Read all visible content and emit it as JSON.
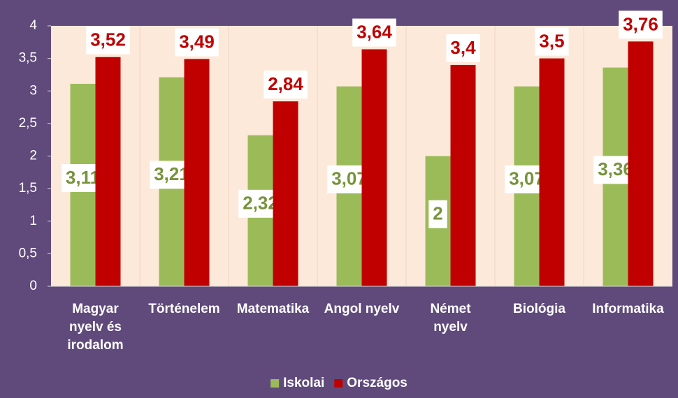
{
  "chart_data": {
    "type": "bar",
    "categories": [
      "Magyar\nnyelv és\nirodalom",
      "Történelem",
      "Matematika",
      "Angol nyelv",
      "Német\nnyelv",
      "Biológia",
      "Informatika"
    ],
    "series": [
      {
        "name": "Iskolai",
        "color": "#9bbb59",
        "label_color": "#77933c",
        "values": [
          3.11,
          3.21,
          2.32,
          3.07,
          2,
          3.07,
          3.36
        ],
        "value_labels": [
          "3,11",
          "3,21",
          "2,32",
          "3,07",
          "2",
          "3,07",
          "3,36"
        ]
      },
      {
        "name": "Országos",
        "color": "#c00000",
        "label_color": "#c00000",
        "values": [
          3.52,
          3.49,
          2.84,
          3.64,
          3.4,
          3.5,
          3.76
        ],
        "value_labels": [
          "3,52",
          "3,49",
          "2,84",
          "3,64",
          "3,4",
          "3,5",
          "3,76"
        ]
      }
    ],
    "ylim": [
      0,
      4
    ],
    "yticks": [
      0,
      {
        "value": 0.5,
        "label": "0,5"
      },
      1,
      {
        "value": 1.5,
        "label": "1,5"
      },
      2,
      {
        "value": 2.5,
        "label": "2,5"
      },
      3,
      {
        "value": 3.5,
        "label": "3,5"
      },
      4
    ],
    "legend": "bottom"
  }
}
